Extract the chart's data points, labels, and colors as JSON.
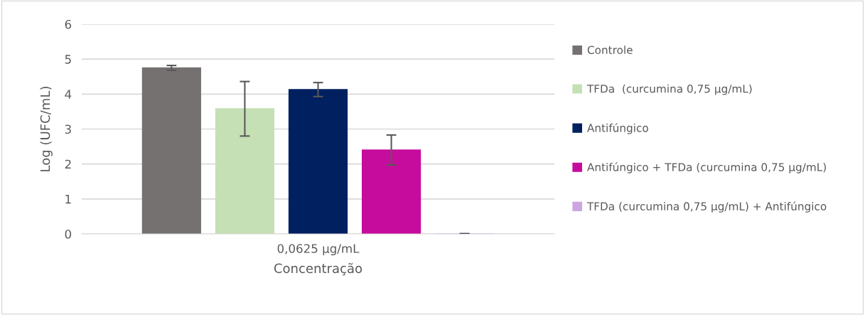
{
  "chart_data": {
    "type": "bar",
    "xlabel": "Concentração",
    "ylabel": "Log (UFC/mL)",
    "categories": [
      "0,0625 µg/mL"
    ],
    "series": [
      {
        "name": "Controle",
        "color": "#767171",
        "values": [
          4.75
        ],
        "errors": [
          0.07
        ]
      },
      {
        "name": "TFDa  (curcumina 0,75 µg/mL)",
        "color": "#c5e0b4",
        "values": [
          3.58
        ],
        "errors": [
          0.78
        ]
      },
      {
        "name": "Antifúngico",
        "color": "#002060",
        "values": [
          4.13
        ],
        "errors": [
          0.2
        ]
      },
      {
        "name": "Antifúngico + TFDa (curcumina 0,75 µg/mL)",
        "color": "#c60c9c",
        "values": [
          2.4
        ],
        "errors": [
          0.43
        ]
      },
      {
        "name": "TFDa (curcumina 0,75 µg/mL) + Antifúngico",
        "color": "#cca4e2",
        "values": [
          0
        ],
        "errors": [
          0.01
        ]
      }
    ],
    "ylim": [
      0,
      6
    ],
    "yticks": [
      0,
      1,
      2,
      3,
      4,
      5,
      6
    ],
    "grid": "y",
    "legend": "right"
  }
}
